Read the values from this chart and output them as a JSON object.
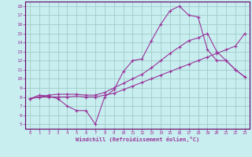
{
  "xlabel": "Windchill (Refroidissement éolien,°C)",
  "bg_color": "#c8eef0",
  "line_color": "#993399",
  "grid_color": "#a0ccc8",
  "spine_color": "#660066",
  "xlim": [
    -0.5,
    23.5
  ],
  "ylim": [
    4.5,
    18.5
  ],
  "xticks": [
    0,
    1,
    2,
    3,
    4,
    5,
    6,
    7,
    8,
    9,
    10,
    11,
    12,
    13,
    14,
    15,
    16,
    17,
    18,
    19,
    20,
    21,
    22,
    23
  ],
  "yticks": [
    5,
    6,
    7,
    8,
    9,
    10,
    11,
    12,
    13,
    14,
    15,
    16,
    17,
    18
  ],
  "line1_x": [
    0,
    1,
    2,
    3,
    4,
    5,
    6,
    7,
    8,
    9,
    10,
    11,
    12,
    13,
    14,
    15,
    16,
    17,
    18,
    19,
    20,
    21,
    22,
    23
  ],
  "line1_y": [
    7.8,
    8.2,
    8.1,
    7.8,
    7.0,
    6.5,
    6.5,
    5.0,
    8.0,
    8.8,
    10.8,
    12.0,
    12.2,
    14.2,
    16.0,
    17.5,
    18.0,
    17.0,
    16.8,
    13.2,
    12.0,
    12.0,
    11.0,
    10.2
  ],
  "line2_x": [
    0,
    1,
    2,
    3,
    4,
    5,
    6,
    7,
    8,
    9,
    10,
    11,
    12,
    13,
    14,
    15,
    16,
    17,
    18,
    19,
    20,
    21,
    22,
    23
  ],
  "line2_y": [
    7.8,
    8.0,
    8.2,
    8.3,
    8.3,
    8.3,
    8.2,
    8.2,
    8.5,
    9.0,
    9.5,
    10.0,
    10.5,
    11.2,
    12.0,
    12.8,
    13.5,
    14.2,
    14.5,
    15.0,
    13.0,
    12.0,
    11.0,
    10.2
  ],
  "line3_x": [
    0,
    1,
    2,
    3,
    4,
    5,
    6,
    7,
    8,
    9,
    10,
    11,
    12,
    13,
    14,
    15,
    16,
    17,
    18,
    19,
    20,
    21,
    22,
    23
  ],
  "line3_y": [
    7.8,
    8.0,
    8.0,
    8.0,
    8.0,
    8.1,
    8.0,
    8.0,
    8.2,
    8.4,
    8.8,
    9.2,
    9.6,
    10.0,
    10.4,
    10.8,
    11.2,
    11.6,
    12.0,
    12.4,
    12.8,
    13.2,
    13.6,
    15.0
  ]
}
